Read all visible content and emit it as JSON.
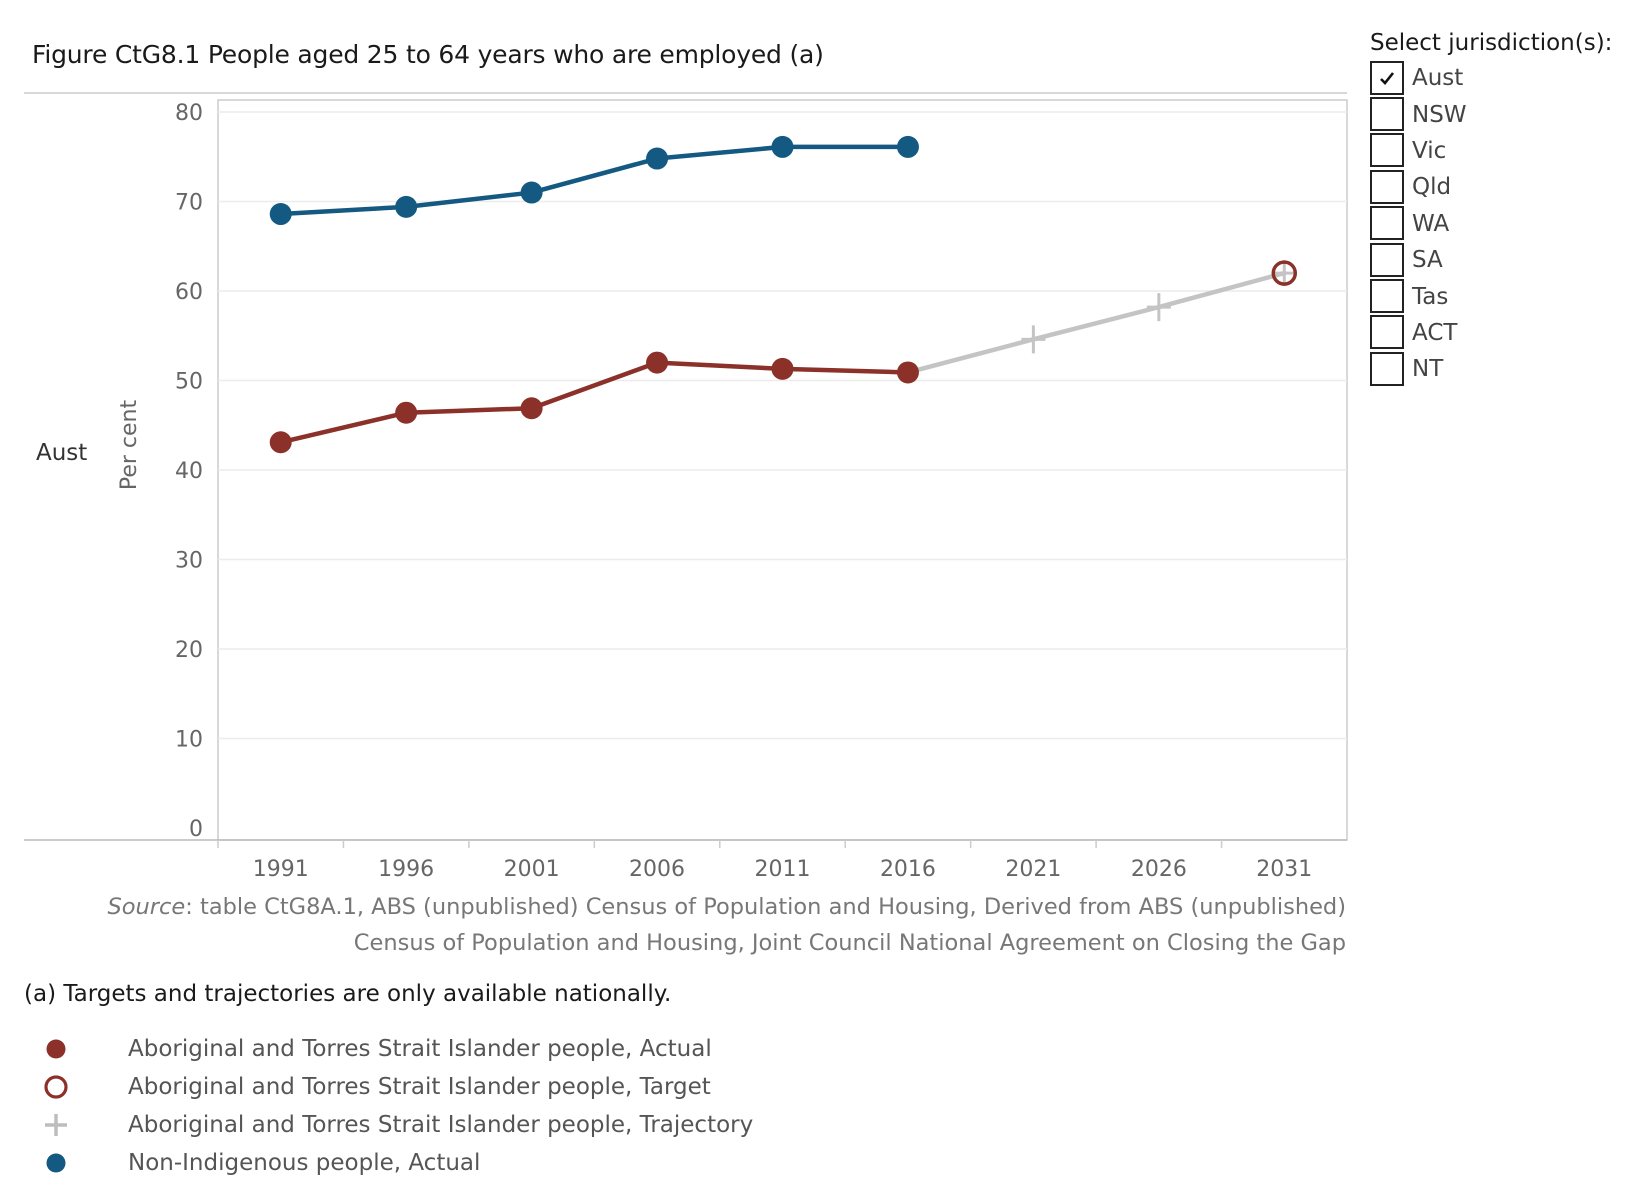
{
  "title": "Figure CtG8.1 People aged 25 to 64 years who are employed (a)",
  "row_label": "Aust",
  "filter": {
    "title": "Select jurisdiction(s):",
    "options": [
      {
        "label": "Aust",
        "checked": true
      },
      {
        "label": "NSW",
        "checked": false
      },
      {
        "label": "Vic",
        "checked": false
      },
      {
        "label": "Qld",
        "checked": false
      },
      {
        "label": "WA",
        "checked": false
      },
      {
        "label": "SA",
        "checked": false
      },
      {
        "label": "Tas",
        "checked": false
      },
      {
        "label": "ACT",
        "checked": false
      },
      {
        "label": "NT",
        "checked": false
      }
    ]
  },
  "source": {
    "label": "Source",
    "line1": ": table CtG8A.1, ABS (unpublished) Census of Population and Housing, Derived from ABS (unpublished)",
    "line2": "Census of Population and Housing, Joint Council National Agreement on Closing the Gap"
  },
  "note": "(a) Targets and trajectories are only available nationally.",
  "legend": [
    {
      "label": "Aboriginal and Torres Strait Islander people, Actual",
      "marker": "filled-circle",
      "color": "#8b3129"
    },
    {
      "label": "Aboriginal and Torres Strait Islander people, Target",
      "marker": "open-circle",
      "color": "#8b3129"
    },
    {
      "label": "Aboriginal and Torres Strait Islander people, Trajectory",
      "marker": "plus",
      "color": "#bdbdbd"
    },
    {
      "label": "Non-Indigenous people, Actual",
      "marker": "filled-circle",
      "color": "#145982"
    }
  ],
  "colors": {
    "indigenous": "#8b3129",
    "non_indigenous": "#145982",
    "trajectory": "#c4c4c4",
    "grid": "#ececec",
    "axis": "#cccccc"
  },
  "chart_data": {
    "type": "line",
    "title": "Figure CtG8.1 People aged 25 to 64 years who are employed (a)",
    "xlabel": "",
    "ylabel": "Per cent",
    "categories": [
      "1991",
      "1996",
      "2001",
      "2006",
      "2011",
      "2016",
      "2021",
      "2026",
      "2031"
    ],
    "yticks": [
      0,
      10,
      20,
      30,
      40,
      50,
      60,
      70,
      80
    ],
    "ylim": [
      0,
      80
    ],
    "series": [
      {
        "name": "Non-Indigenous people, Actual",
        "style": "line-filled-markers",
        "color": "#145982",
        "values": [
          68.6,
          69.4,
          71.0,
          74.8,
          76.1,
          76.1,
          null,
          null,
          null
        ]
      },
      {
        "name": "Aboriginal and Torres Strait Islander people, Actual",
        "style": "line-filled-markers",
        "color": "#8b3129",
        "values": [
          43.1,
          46.4,
          46.9,
          52.0,
          51.3,
          50.9,
          null,
          null,
          null
        ]
      },
      {
        "name": "Aboriginal and Torres Strait Islander people, Trajectory",
        "style": "line-plus-markers",
        "color": "#c4c4c4",
        "values": [
          null,
          null,
          null,
          null,
          null,
          50.9,
          54.6,
          58.2,
          62.0
        ]
      },
      {
        "name": "Aboriginal and Torres Strait Islander people, Target",
        "style": "open-marker",
        "color": "#8b3129",
        "values": [
          null,
          null,
          null,
          null,
          null,
          null,
          null,
          null,
          62.0
        ]
      }
    ]
  }
}
